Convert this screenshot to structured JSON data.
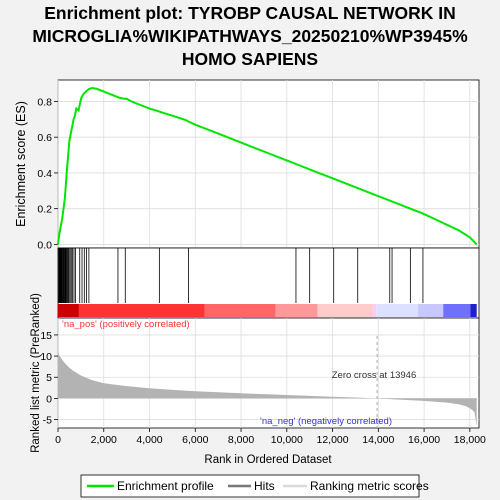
{
  "chart_data": {
    "type": "line",
    "title_lines": [
      "Enrichment plot: TYROBP CAUSAL NETWORK IN",
      "MICROGLIA%WIKIPATHWAYS_20250210%WP3945%",
      "HOMO SAPIENS"
    ],
    "es_panel": {
      "ylabel": "Enrichment score (ES)",
      "ylim": [
        -0.02,
        0.92
      ],
      "yticks": [
        0.0,
        0.2,
        0.4,
        0.6,
        0.8
      ],
      "ytick_labels": [
        "0.0",
        "0.2",
        "0.4",
        "0.6",
        "0.8"
      ],
      "grid": true,
      "series": [
        {
          "color": "#00e600",
          "x": [
            0,
            60,
            120,
            180,
            240,
            300,
            340,
            380,
            420,
            460,
            500,
            560,
            620,
            680,
            740,
            800,
            900,
            960,
            1020,
            1100,
            1180,
            1260,
            1360,
            1500,
            1700,
            2000,
            2400,
            2600,
            2700,
            2900,
            3000,
            3200,
            3600,
            4000,
            4400,
            4500,
            5000,
            5600,
            5700,
            6000,
            7000,
            8000,
            9000,
            10000,
            10400,
            11000,
            12000,
            13000,
            14000,
            14500,
            14600,
            15000,
            15400,
            15900,
            16500,
            17000,
            17500,
            18000,
            18300
          ],
          "y": [
            0.0,
            0.06,
            0.1,
            0.14,
            0.2,
            0.26,
            0.33,
            0.4,
            0.46,
            0.52,
            0.58,
            0.62,
            0.66,
            0.7,
            0.72,
            0.76,
            0.75,
            0.79,
            0.82,
            0.84,
            0.85,
            0.86,
            0.87,
            0.875,
            0.87,
            0.855,
            0.835,
            0.825,
            0.82,
            0.815,
            0.815,
            0.8,
            0.78,
            0.76,
            0.745,
            0.74,
            0.72,
            0.695,
            0.688,
            0.67,
            0.62,
            0.57,
            0.52,
            0.47,
            0.45,
            0.42,
            0.37,
            0.32,
            0.27,
            0.245,
            0.24,
            0.22,
            0.2,
            0.175,
            0.14,
            0.11,
            0.08,
            0.04,
            0.0
          ]
        }
      ]
    },
    "hits": [
      20,
      50,
      80,
      100,
      120,
      140,
      160,
      190,
      220,
      250,
      280,
      310,
      340,
      370,
      400,
      440,
      480,
      530,
      580,
      640,
      700,
      760,
      950,
      1050,
      1150,
      1250,
      1350,
      2620,
      2940,
      4430,
      5700,
      10400,
      11000,
      12050,
      13100,
      14500,
      14600,
      15400,
      15950
    ],
    "rank_panel": {
      "ylabel": "Ranked list metric (PreRanked)",
      "ylim": [
        -7,
        19
      ],
      "yticks": [
        -5,
        0,
        5,
        10,
        15
      ],
      "ytick_labels": [
        "-5",
        "0",
        "5",
        "10",
        "15"
      ],
      "grid": true,
      "metric_profile": {
        "x": [
          0,
          50,
          100,
          200,
          300,
          500,
          700,
          1000,
          1500,
          2000,
          3000,
          4000,
          5000,
          6000,
          8000,
          10000,
          12000,
          13000,
          13946,
          15000,
          16000,
          17000,
          17500,
          17800,
          18000,
          18200,
          18300
        ],
        "y": [
          11.5,
          10.2,
          9.8,
          9.0,
          8.3,
          7.2,
          6.4,
          5.4,
          4.3,
          3.6,
          2.9,
          2.4,
          2.0,
          1.7,
          1.2,
          0.8,
          0.4,
          0.2,
          0.0,
          -0.3,
          -0.6,
          -1.0,
          -1.4,
          -1.8,
          -2.3,
          -3.2,
          -6.5
        ]
      },
      "zero_cross_label": "Zero cross at 13946",
      "zero_cross_rank": 13946,
      "pos_label": "'na_pos' (positively correlated)",
      "neg_label": "'na_neg' (negatively correlated)"
    },
    "xlabel": "Rank in Ordered Dataset",
    "xlim": [
      0,
      18400
    ],
    "xticks": [
      0,
      2000,
      4000,
      6000,
      8000,
      10000,
      12000,
      14000,
      16000,
      18000
    ],
    "xtick_labels": [
      "0",
      "2,000",
      "4,000",
      "6,000",
      "8,000",
      "10,000",
      "12,000",
      "14,000",
      "16,000",
      "18,000"
    ],
    "legend": {
      "placement": "bottom",
      "entries": [
        {
          "label": "Enrichment profile",
          "color": "#00e600"
        },
        {
          "label": "Hits",
          "color": "#777777"
        },
        {
          "label": "Ranking metric scores",
          "color": "#d9d9d9"
        }
      ]
    },
    "colors": {
      "pos_label": "#ff3333",
      "neg_label": "#3333cc",
      "metric_fill": "#b3b3b3"
    }
  }
}
